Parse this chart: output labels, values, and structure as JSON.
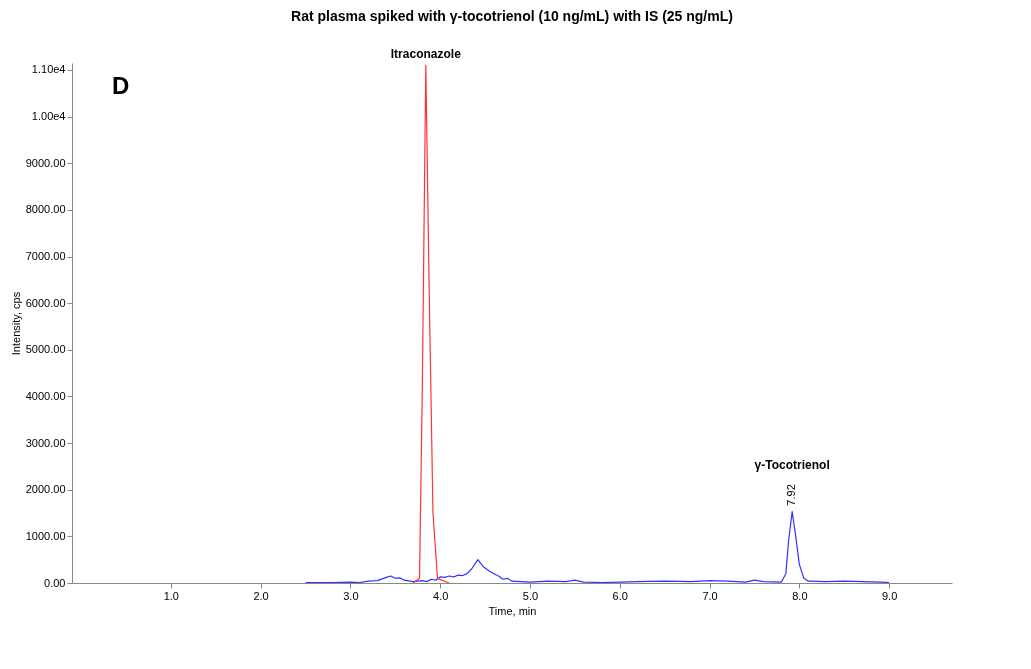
{
  "chart_data": {
    "type": "line",
    "title": "Rat plasma spiked with γ-tocotrienol (10 ng/mL) with IS (25 ng/mL)",
    "xlabel": "Time, min",
    "ylabel": "Intensity, cps",
    "xlim": [
      -0.1,
      9.7
    ],
    "ylim": [
      0,
      11150
    ],
    "xticks": [
      {
        "value": 1,
        "label": "1.0"
      },
      {
        "value": 2,
        "label": "2.0"
      },
      {
        "value": 3,
        "label": "3.0"
      },
      {
        "value": 4,
        "label": "4.0"
      },
      {
        "value": 5,
        "label": "5.0"
      },
      {
        "value": 6,
        "label": "6.0"
      },
      {
        "value": 7,
        "label": "7.0"
      },
      {
        "value": 8,
        "label": "8.0"
      },
      {
        "value": 9,
        "label": "9.0"
      }
    ],
    "yticks": [
      {
        "value": 0,
        "label": "0.00"
      },
      {
        "value": 1000,
        "label": "1000.00"
      },
      {
        "value": 2000,
        "label": "2000.00"
      },
      {
        "value": 3000,
        "label": "3000.00"
      },
      {
        "value": 4000,
        "label": "4000.00"
      },
      {
        "value": 5000,
        "label": "5000.00"
      },
      {
        "value": 6000,
        "label": "6000.00"
      },
      {
        "value": 7000,
        "label": "7000.00"
      },
      {
        "value": 8000,
        "label": "8000.00"
      },
      {
        "value": 9000,
        "label": "9000.00"
      },
      {
        "value": 10000,
        "label": "1.00e4"
      },
      {
        "value": 11000,
        "label": "1.10e4"
      }
    ],
    "grid": false,
    "legend": false,
    "marker": "none",
    "line_style": "solid",
    "series": [
      {
        "color": "#3333ff",
        "x": [
          2.5,
          2.8,
          3.0,
          3.1,
          3.2,
          3.3,
          3.4,
          3.45,
          3.5,
          3.55,
          3.6,
          3.7,
          3.8,
          3.85,
          3.9,
          3.95,
          4.0,
          4.05,
          4.1,
          4.15,
          4.2,
          4.25,
          4.3,
          4.35,
          4.42,
          4.48,
          4.55,
          4.6,
          4.65,
          4.7,
          4.75,
          4.8,
          4.9,
          5.0,
          5.2,
          5.4,
          5.5,
          5.6,
          5.8,
          6.0,
          6.2,
          6.5,
          6.8,
          7.0,
          7.2,
          7.4,
          7.5,
          7.6,
          7.8,
          7.85,
          7.88,
          7.92,
          7.96,
          8.0,
          8.05,
          8.1,
          8.3,
          8.5,
          8.7,
          8.9,
          9.0
        ],
        "values": [
          10,
          10,
          20,
          10,
          40,
          50,
          120,
          150,
          100,
          110,
          60,
          30,
          50,
          30,
          80,
          60,
          130,
          120,
          150,
          130,
          170,
          160,
          200,
          300,
          500,
          350,
          250,
          200,
          150,
          80,
          100,
          40,
          30,
          20,
          40,
          30,
          60,
          20,
          10,
          20,
          30,
          40,
          30,
          50,
          40,
          20,
          60,
          30,
          20,
          200,
          900,
          1530,
          1000,
          400,
          100,
          40,
          30,
          40,
          30,
          20,
          10
        ]
      },
      {
        "color": "#ff3333",
        "x": [
          3.7,
          3.77,
          3.8,
          3.84,
          3.88,
          3.92,
          3.97,
          4.1
        ],
        "values": [
          0,
          100,
          4000,
          11100,
          6000,
          1500,
          100,
          0
        ]
      }
    ],
    "annotations": [
      "D",
      {
        "text": "Itraconazole",
        "x": 3.84,
        "y": 11100
      },
      {
        "text": "7.92",
        "x": 7.92,
        "y": 1530
      },
      "γ-Tocotrienol"
    ]
  }
}
